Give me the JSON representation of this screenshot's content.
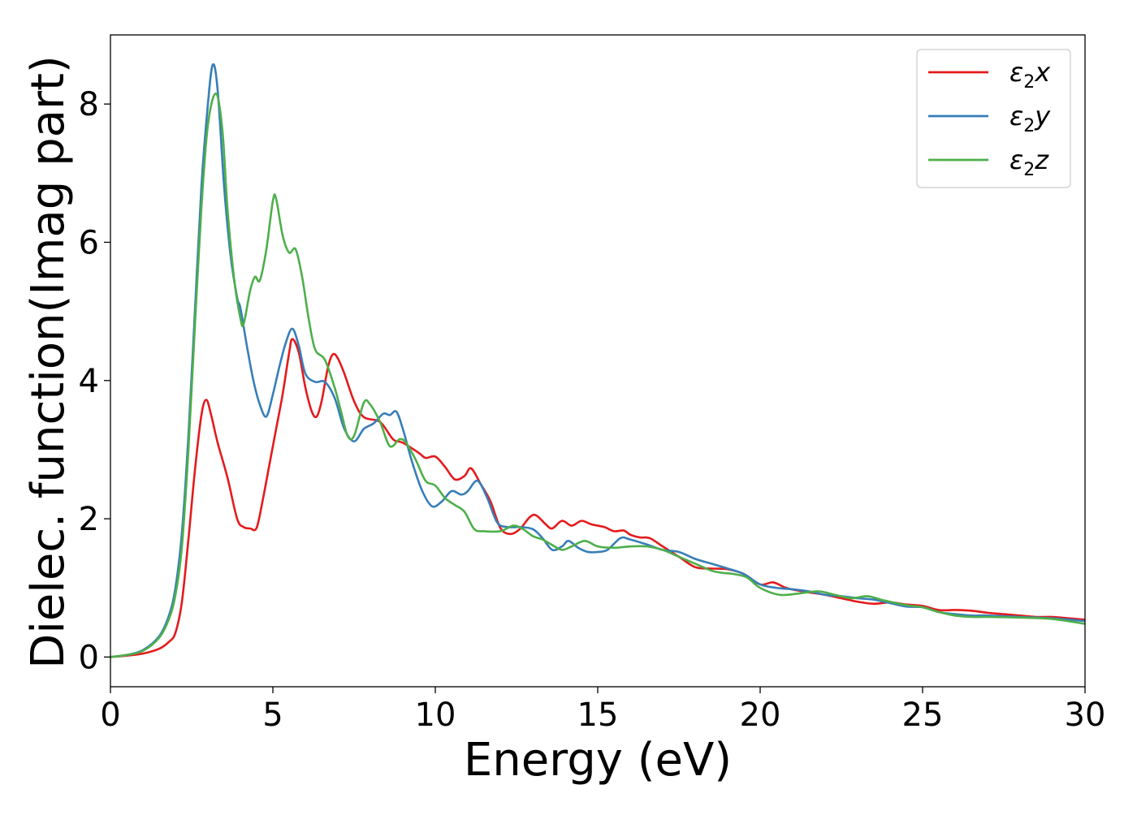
{
  "chart_data": {
    "type": "line",
    "title": "",
    "xlabel": "Energy (eV)",
    "ylabel": "Dielec. function(Imag part)",
    "xlim": [
      0,
      30
    ],
    "ylim": [
      -0.43,
      9.0
    ],
    "xticks": [
      0,
      5,
      10,
      15,
      20,
      25,
      30
    ],
    "xtick_labels": [
      "0",
      "5",
      "10",
      "15",
      "20",
      "25",
      "30"
    ],
    "yticks": [
      0,
      2,
      4,
      6,
      8
    ],
    "ytick_labels": [
      "0",
      "2",
      "4",
      "6",
      "8"
    ],
    "grid": false,
    "legend_position": "top-right",
    "series": [
      {
        "name": "ε2x",
        "legend": {
          "base": "ε",
          "sub": "2",
          "tail": "x"
        },
        "color": "#e41a1c",
        "points": [
          [
            0,
            0
          ],
          [
            0.5,
            0.02
          ],
          [
            1.0,
            0.05
          ],
          [
            1.5,
            0.12
          ],
          [
            1.8,
            0.22
          ],
          [
            2.0,
            0.35
          ],
          [
            2.2,
            0.8
          ],
          [
            2.4,
            1.7
          ],
          [
            2.6,
            2.7
          ],
          [
            2.8,
            3.5
          ],
          [
            2.95,
            3.72
          ],
          [
            3.1,
            3.5
          ],
          [
            3.3,
            3.1
          ],
          [
            3.6,
            2.6
          ],
          [
            3.9,
            2.0
          ],
          [
            4.1,
            1.88
          ],
          [
            4.3,
            1.86
          ],
          [
            4.5,
            1.87
          ],
          [
            4.7,
            2.3
          ],
          [
            4.9,
            2.8
          ],
          [
            5.1,
            3.3
          ],
          [
            5.3,
            3.8
          ],
          [
            5.5,
            4.4
          ],
          [
            5.6,
            4.6
          ],
          [
            5.8,
            4.4
          ],
          [
            6.0,
            3.9
          ],
          [
            6.2,
            3.55
          ],
          [
            6.35,
            3.48
          ],
          [
            6.5,
            3.7
          ],
          [
            6.7,
            4.2
          ],
          [
            6.85,
            4.38
          ],
          [
            7.0,
            4.32
          ],
          [
            7.2,
            4.1
          ],
          [
            7.5,
            3.7
          ],
          [
            7.8,
            3.47
          ],
          [
            8.3,
            3.4
          ],
          [
            8.7,
            3.15
          ],
          [
            9.0,
            3.1
          ],
          [
            9.5,
            2.95
          ],
          [
            9.7,
            2.88
          ],
          [
            10.0,
            2.9
          ],
          [
            10.3,
            2.75
          ],
          [
            10.6,
            2.57
          ],
          [
            10.9,
            2.62
          ],
          [
            11.1,
            2.73
          ],
          [
            11.4,
            2.5
          ],
          [
            11.7,
            2.25
          ],
          [
            12.0,
            1.87
          ],
          [
            12.3,
            1.78
          ],
          [
            12.6,
            1.85
          ],
          [
            12.9,
            2.02
          ],
          [
            13.1,
            2.05
          ],
          [
            13.4,
            1.92
          ],
          [
            13.6,
            1.86
          ],
          [
            13.9,
            1.97
          ],
          [
            14.2,
            1.9
          ],
          [
            14.5,
            1.97
          ],
          [
            14.8,
            1.92
          ],
          [
            15.2,
            1.88
          ],
          [
            15.5,
            1.82
          ],
          [
            15.8,
            1.83
          ],
          [
            16.0,
            1.77
          ],
          [
            16.3,
            1.73
          ],
          [
            16.6,
            1.72
          ],
          [
            17.0,
            1.6
          ],
          [
            17.5,
            1.45
          ],
          [
            18.0,
            1.3
          ],
          [
            18.5,
            1.28
          ],
          [
            19.0,
            1.27
          ],
          [
            19.5,
            1.2
          ],
          [
            20.0,
            1.05
          ],
          [
            20.4,
            1.08
          ],
          [
            20.8,
            1.0
          ],
          [
            21.3,
            0.95
          ],
          [
            22.0,
            0.9
          ],
          [
            22.5,
            0.85
          ],
          [
            23.0,
            0.8
          ],
          [
            23.5,
            0.77
          ],
          [
            24.0,
            0.79
          ],
          [
            24.5,
            0.76
          ],
          [
            25.0,
            0.74
          ],
          [
            25.5,
            0.68
          ],
          [
            26.0,
            0.68
          ],
          [
            26.5,
            0.67
          ],
          [
            27.0,
            0.64
          ],
          [
            27.5,
            0.62
          ],
          [
            28.0,
            0.6
          ],
          [
            28.5,
            0.58
          ],
          [
            29.0,
            0.58
          ],
          [
            29.5,
            0.56
          ],
          [
            30.0,
            0.54
          ]
        ]
      },
      {
        "name": "ε2y",
        "legend": {
          "base": "ε",
          "sub": "2",
          "tail": "y"
        },
        "color": "#377eb8",
        "points": [
          [
            0,
            0
          ],
          [
            0.5,
            0.03
          ],
          [
            1.0,
            0.1
          ],
          [
            1.5,
            0.3
          ],
          [
            1.8,
            0.6
          ],
          [
            2.0,
            1.0
          ],
          [
            2.2,
            1.8
          ],
          [
            2.4,
            3.2
          ],
          [
            2.6,
            5.0
          ],
          [
            2.8,
            6.8
          ],
          [
            3.0,
            8.0
          ],
          [
            3.15,
            8.57
          ],
          [
            3.3,
            8.2
          ],
          [
            3.5,
            6.8
          ],
          [
            3.7,
            5.8
          ],
          [
            3.9,
            5.2
          ],
          [
            4.0,
            5.05
          ],
          [
            4.2,
            4.5
          ],
          [
            4.4,
            4.0
          ],
          [
            4.6,
            3.65
          ],
          [
            4.8,
            3.48
          ],
          [
            5.0,
            3.8
          ],
          [
            5.2,
            4.2
          ],
          [
            5.4,
            4.55
          ],
          [
            5.6,
            4.75
          ],
          [
            5.8,
            4.5
          ],
          [
            6.0,
            4.1
          ],
          [
            6.3,
            3.98
          ],
          [
            6.6,
            3.98
          ],
          [
            6.9,
            3.75
          ],
          [
            7.2,
            3.3
          ],
          [
            7.5,
            3.12
          ],
          [
            7.8,
            3.3
          ],
          [
            8.1,
            3.38
          ],
          [
            8.4,
            3.52
          ],
          [
            8.6,
            3.5
          ],
          [
            8.8,
            3.55
          ],
          [
            9.0,
            3.3
          ],
          [
            9.3,
            2.8
          ],
          [
            9.6,
            2.4
          ],
          [
            9.9,
            2.18
          ],
          [
            10.2,
            2.25
          ],
          [
            10.5,
            2.4
          ],
          [
            10.8,
            2.35
          ],
          [
            11.0,
            2.4
          ],
          [
            11.3,
            2.55
          ],
          [
            11.6,
            2.3
          ],
          [
            11.9,
            1.95
          ],
          [
            12.2,
            1.88
          ],
          [
            12.6,
            1.88
          ],
          [
            13.0,
            1.85
          ],
          [
            13.3,
            1.72
          ],
          [
            13.6,
            1.55
          ],
          [
            13.9,
            1.6
          ],
          [
            14.1,
            1.68
          ],
          [
            14.4,
            1.58
          ],
          [
            14.7,
            1.52
          ],
          [
            15.0,
            1.52
          ],
          [
            15.3,
            1.55
          ],
          [
            15.7,
            1.72
          ],
          [
            16.0,
            1.7
          ],
          [
            16.5,
            1.63
          ],
          [
            17.0,
            1.55
          ],
          [
            17.5,
            1.52
          ],
          [
            18.0,
            1.42
          ],
          [
            18.5,
            1.35
          ],
          [
            19.0,
            1.28
          ],
          [
            19.5,
            1.2
          ],
          [
            20.0,
            1.05
          ],
          [
            20.5,
            1.0
          ],
          [
            21.0,
            0.98
          ],
          [
            21.5,
            0.95
          ],
          [
            22.0,
            0.9
          ],
          [
            22.5,
            0.88
          ],
          [
            23.0,
            0.85
          ],
          [
            23.5,
            0.83
          ],
          [
            24.0,
            0.78
          ],
          [
            24.5,
            0.73
          ],
          [
            25.0,
            0.72
          ],
          [
            25.5,
            0.65
          ],
          [
            26.0,
            0.62
          ],
          [
            26.5,
            0.6
          ],
          [
            27.0,
            0.6
          ],
          [
            28.0,
            0.58
          ],
          [
            29.0,
            0.56
          ],
          [
            30.0,
            0.52
          ]
        ]
      },
      {
        "name": "ε2z",
        "legend": {
          "base": "ε",
          "sub": "2",
          "tail": "z"
        },
        "color": "#4daf4a",
        "points": [
          [
            0,
            0
          ],
          [
            0.5,
            0.03
          ],
          [
            1.0,
            0.09
          ],
          [
            1.5,
            0.28
          ],
          [
            1.8,
            0.55
          ],
          [
            2.0,
            0.9
          ],
          [
            2.2,
            1.6
          ],
          [
            2.4,
            3.0
          ],
          [
            2.6,
            4.8
          ],
          [
            2.8,
            6.5
          ],
          [
            3.0,
            7.7
          ],
          [
            3.25,
            8.15
          ],
          [
            3.45,
            7.6
          ],
          [
            3.6,
            6.5
          ],
          [
            3.8,
            5.5
          ],
          [
            4.0,
            4.9
          ],
          [
            4.1,
            4.82
          ],
          [
            4.3,
            5.3
          ],
          [
            4.45,
            5.5
          ],
          [
            4.6,
            5.45
          ],
          [
            4.8,
            5.9
          ],
          [
            5.0,
            6.6
          ],
          [
            5.1,
            6.63
          ],
          [
            5.3,
            6.1
          ],
          [
            5.5,
            5.85
          ],
          [
            5.7,
            5.9
          ],
          [
            5.9,
            5.5
          ],
          [
            6.1,
            4.9
          ],
          [
            6.3,
            4.45
          ],
          [
            6.6,
            4.3
          ],
          [
            6.9,
            3.9
          ],
          [
            7.1,
            3.55
          ],
          [
            7.3,
            3.2
          ],
          [
            7.5,
            3.2
          ],
          [
            7.8,
            3.68
          ],
          [
            8.0,
            3.65
          ],
          [
            8.3,
            3.4
          ],
          [
            8.6,
            3.05
          ],
          [
            8.9,
            3.15
          ],
          [
            9.1,
            3.1
          ],
          [
            9.4,
            2.85
          ],
          [
            9.7,
            2.55
          ],
          [
            10.0,
            2.48
          ],
          [
            10.3,
            2.3
          ],
          [
            10.6,
            2.2
          ],
          [
            10.9,
            2.1
          ],
          [
            11.2,
            1.85
          ],
          [
            11.5,
            1.82
          ],
          [
            12.0,
            1.82
          ],
          [
            12.4,
            1.9
          ],
          [
            12.7,
            1.85
          ],
          [
            13.0,
            1.75
          ],
          [
            13.3,
            1.7
          ],
          [
            13.6,
            1.62
          ],
          [
            13.9,
            1.55
          ],
          [
            14.2,
            1.6
          ],
          [
            14.6,
            1.68
          ],
          [
            15.0,
            1.6
          ],
          [
            15.5,
            1.58
          ],
          [
            16.0,
            1.6
          ],
          [
            16.5,
            1.6
          ],
          [
            17.0,
            1.55
          ],
          [
            17.5,
            1.45
          ],
          [
            18.0,
            1.35
          ],
          [
            18.5,
            1.25
          ],
          [
            18.8,
            1.22
          ],
          [
            19.2,
            1.2
          ],
          [
            19.6,
            1.15
          ],
          [
            20.0,
            1.0
          ],
          [
            20.6,
            0.9
          ],
          [
            21.2,
            0.92
          ],
          [
            21.8,
            0.95
          ],
          [
            22.3,
            0.9
          ],
          [
            22.8,
            0.85
          ],
          [
            23.3,
            0.88
          ],
          [
            23.8,
            0.82
          ],
          [
            24.5,
            0.75
          ],
          [
            25.0,
            0.72
          ],
          [
            25.5,
            0.65
          ],
          [
            26.0,
            0.6
          ],
          [
            26.5,
            0.58
          ],
          [
            27.0,
            0.58
          ],
          [
            28.0,
            0.57
          ],
          [
            29.0,
            0.55
          ],
          [
            30.0,
            0.48
          ]
        ]
      }
    ]
  }
}
